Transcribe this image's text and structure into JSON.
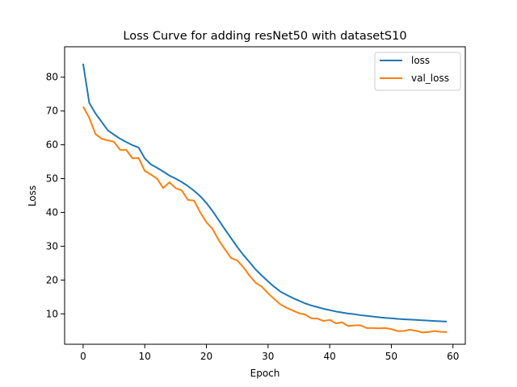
{
  "chart_data": {
    "type": "line",
    "title": "Loss Curve for adding resNet50 with datasetS10",
    "xlabel": "Epoch",
    "ylabel": "Loss",
    "xlim": [
      -3,
      62
    ],
    "ylim": [
      1,
      89
    ],
    "x_ticks": [
      0,
      10,
      20,
      30,
      40,
      50,
      60
    ],
    "y_ticks": [
      10,
      20,
      30,
      40,
      50,
      60,
      70,
      80
    ],
    "legend_position": "top-right",
    "grid": false,
    "x": [
      0,
      1,
      2,
      3,
      4,
      5,
      6,
      7,
      8,
      9,
      10,
      11,
      12,
      13,
      14,
      15,
      16,
      17,
      18,
      19,
      20,
      21,
      22,
      23,
      24,
      25,
      26,
      27,
      28,
      29,
      30,
      31,
      32,
      33,
      34,
      35,
      36,
      37,
      38,
      39,
      40,
      41,
      42,
      43,
      44,
      45,
      46,
      47,
      48,
      49,
      50,
      51,
      52,
      53,
      54,
      55,
      56,
      57,
      58,
      59
    ],
    "series": [
      {
        "name": "loss",
        "color": "#1f77b4",
        "values": [
          84.0,
          72.4,
          69.3,
          66.8,
          64.3,
          63.0,
          61.8,
          60.8,
          59.9,
          59.2,
          56.0,
          54.2,
          53.2,
          52.1,
          50.9,
          50.0,
          49.0,
          47.8,
          46.4,
          44.8,
          42.8,
          40.4,
          37.7,
          35.0,
          32.4,
          29.8,
          27.4,
          25.3,
          23.1,
          21.3,
          19.6,
          18.0,
          16.6,
          15.6,
          14.7,
          13.9,
          13.1,
          12.5,
          12.0,
          11.5,
          11.1,
          10.7,
          10.4,
          10.1,
          9.9,
          9.6,
          9.4,
          9.2,
          9.0,
          8.8,
          8.7,
          8.5,
          8.4,
          8.3,
          8.2,
          8.1,
          8.0,
          7.9,
          7.8,
          7.7
        ]
      },
      {
        "name": "val_loss",
        "color": "#ff7f0e",
        "values": [
          71.3,
          68.0,
          63.2,
          61.8,
          61.3,
          60.9,
          58.5,
          58.5,
          56.0,
          56.1,
          52.3,
          51.2,
          50.0,
          47.2,
          48.9,
          47.2,
          46.5,
          43.7,
          43.5,
          40.0,
          37.1,
          35.1,
          31.8,
          29.1,
          26.5,
          25.8,
          23.8,
          21.3,
          19.2,
          18.0,
          16.1,
          14.4,
          12.8,
          11.8,
          11.0,
          10.2,
          9.8,
          8.7,
          8.6,
          7.9,
          8.2,
          7.2,
          7.5,
          6.4,
          6.6,
          6.6,
          5.8,
          5.8,
          5.7,
          5.8,
          5.5,
          4.9,
          4.9,
          5.3,
          5.0,
          4.5,
          4.6,
          4.9,
          4.7,
          4.6
        ]
      }
    ]
  }
}
